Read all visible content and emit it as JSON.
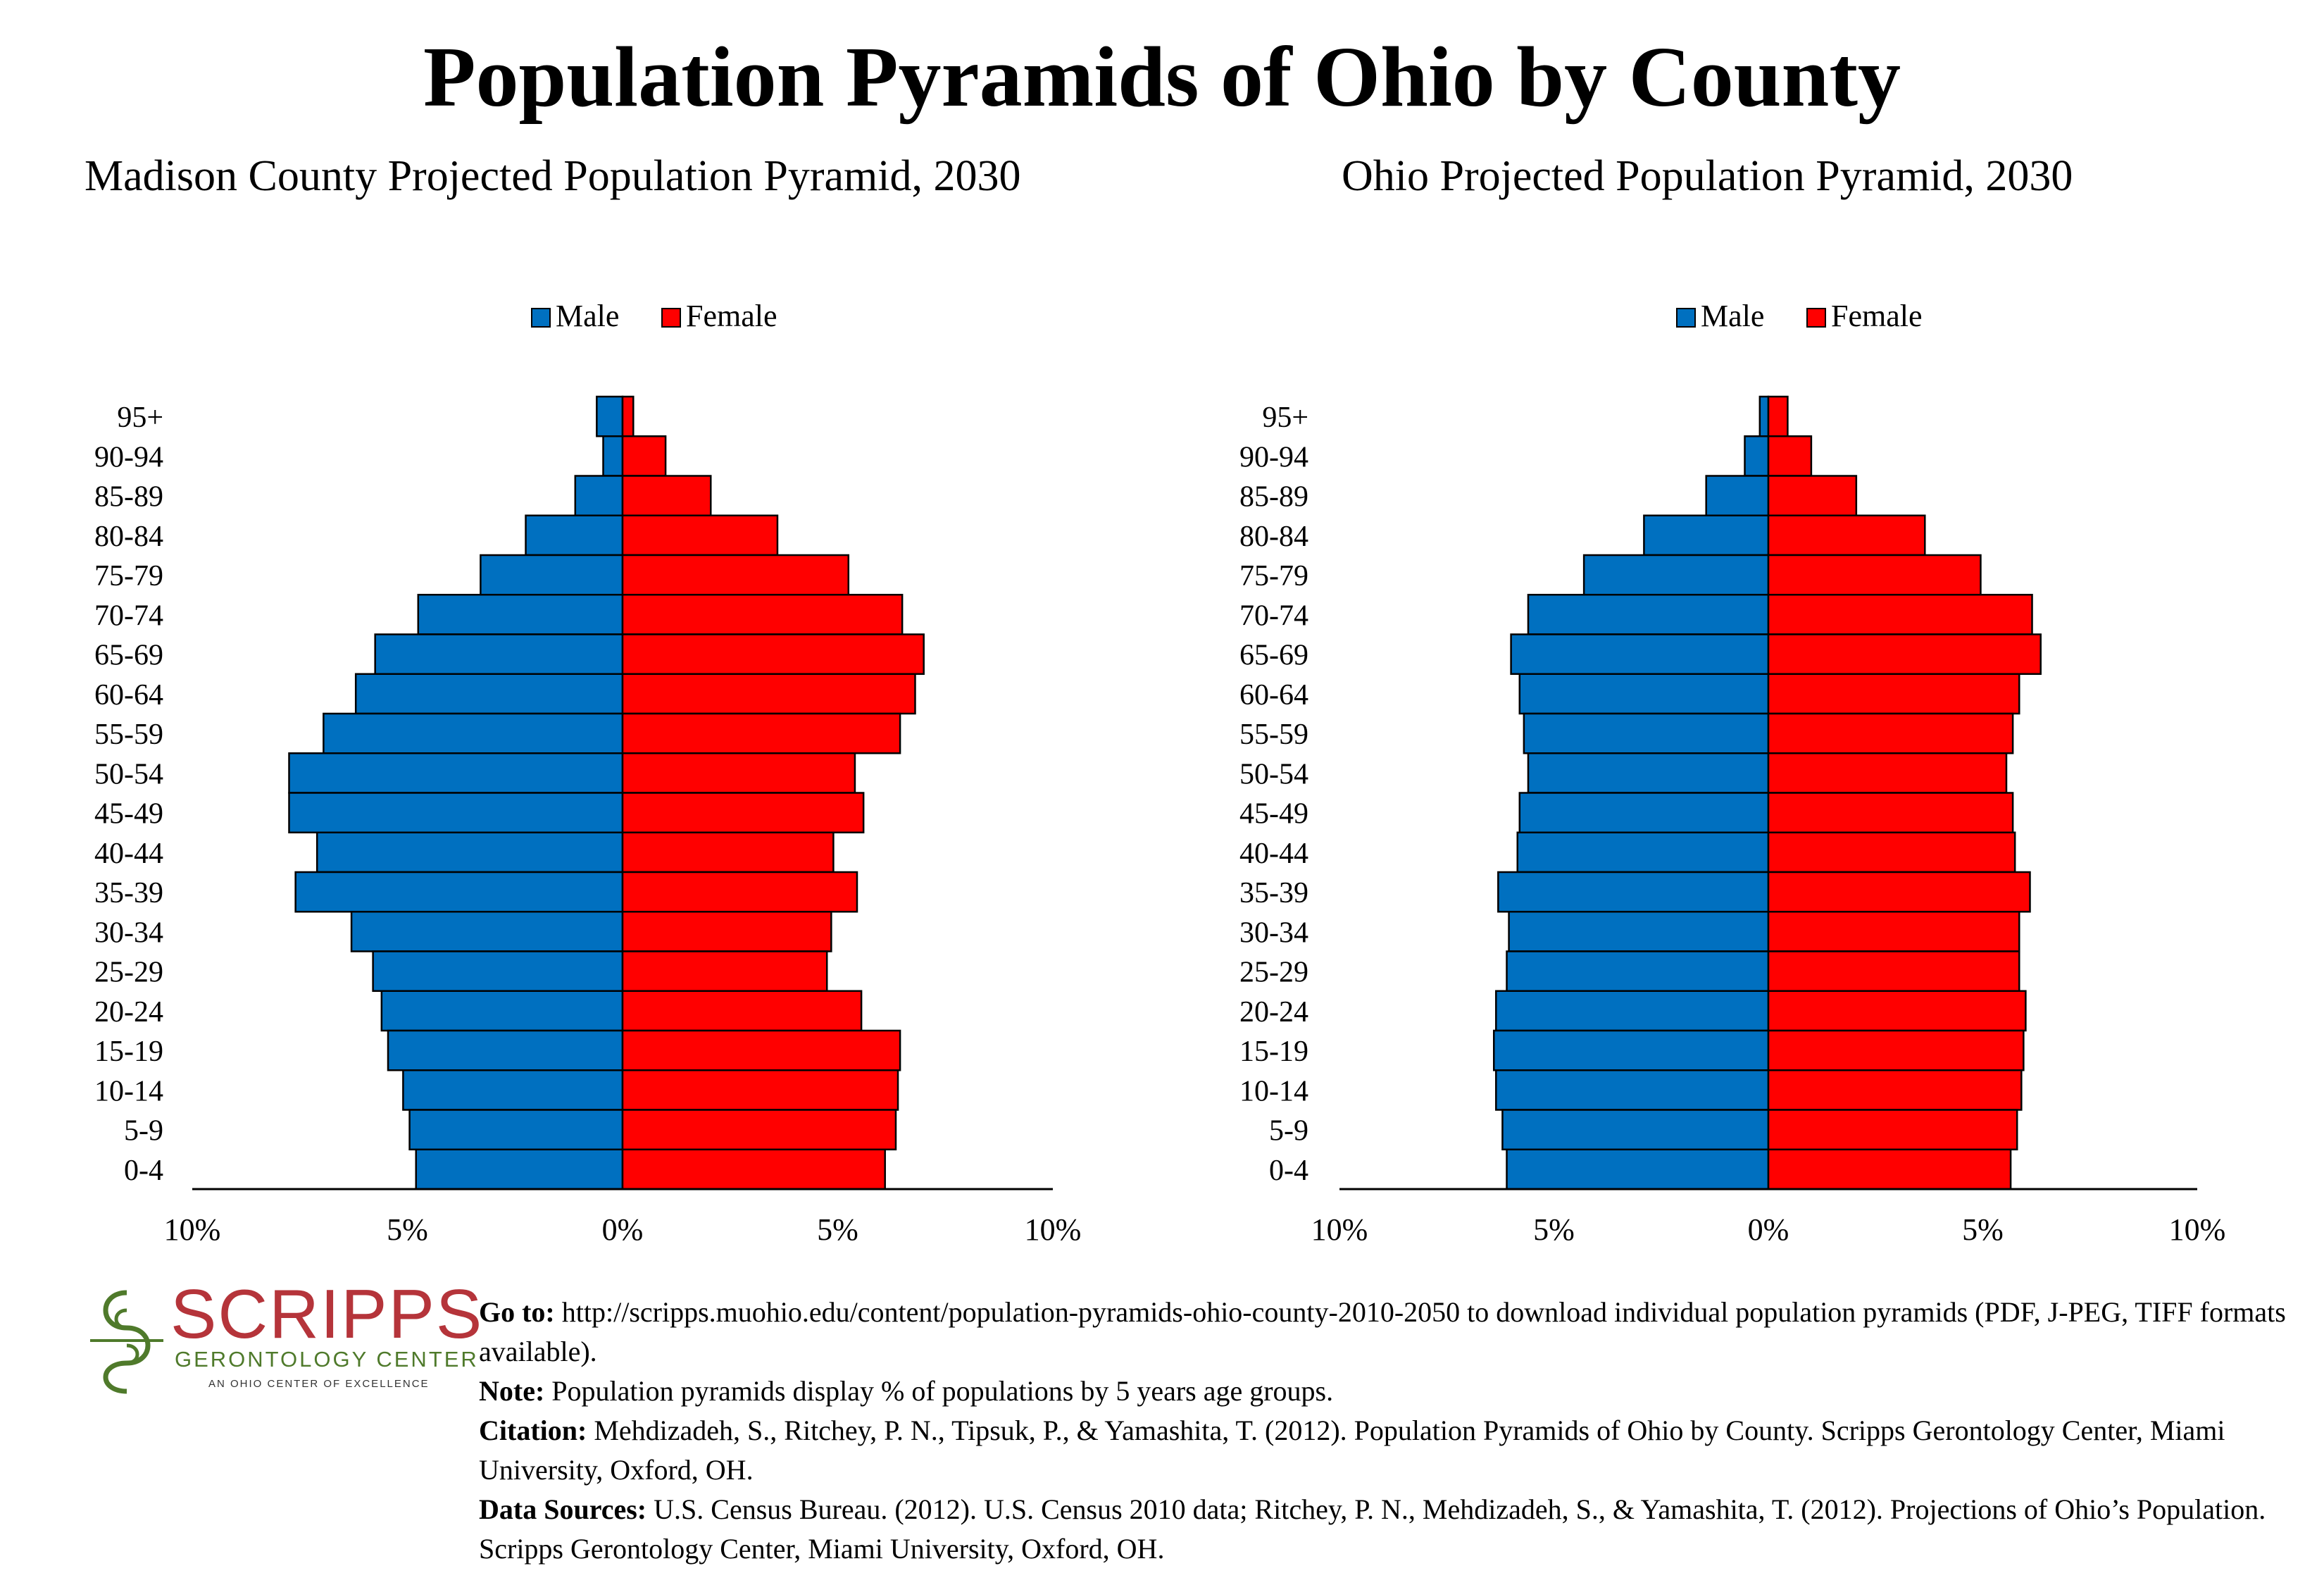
{
  "title": "Population Pyramids of Ohio by County",
  "legend": {
    "male": "Male",
    "female": "Female"
  },
  "colors": {
    "male": "#0070c0",
    "female": "#ff0000"
  },
  "chart_data": [
    {
      "type": "bar",
      "orientation": "horizontal-pyramid",
      "title": "Madison County Projected Population Pyramid, 2030",
      "categories": [
        "95+",
        "90-94",
        "85-89",
        "80-84",
        "75-79",
        "70-74",
        "65-69",
        "60-64",
        "55-59",
        "50-54",
        "45-49",
        "40-44",
        "35-39",
        "30-34",
        "25-29",
        "20-24",
        "15-19",
        "10-14",
        "5-9",
        "0-4"
      ],
      "series": [
        {
          "name": "Male",
          "values": [
            0.6,
            0.45,
            1.1,
            2.25,
            3.3,
            4.75,
            5.75,
            6.2,
            6.95,
            7.75,
            7.75,
            7.1,
            7.6,
            6.3,
            5.8,
            5.6,
            5.45,
            5.1,
            4.95,
            4.8
          ]
        },
        {
          "name": "Female",
          "values": [
            0.25,
            1.0,
            2.05,
            3.6,
            5.25,
            6.5,
            7.0,
            6.8,
            6.45,
            5.4,
            5.6,
            4.9,
            5.45,
            4.85,
            4.75,
            5.55,
            6.45,
            6.4,
            6.35,
            6.1
          ]
        }
      ],
      "xlim": [
        -10,
        10
      ],
      "tick_labels": [
        "10%",
        "5%",
        "0%",
        "5%",
        "10%"
      ],
      "legend_position": "top-center"
    },
    {
      "type": "bar",
      "orientation": "horizontal-pyramid",
      "title": "Ohio Projected Population Pyramid, 2030",
      "categories": [
        "95+",
        "90-94",
        "85-89",
        "80-84",
        "75-79",
        "70-74",
        "65-69",
        "60-64",
        "55-59",
        "50-54",
        "45-49",
        "40-44",
        "35-39",
        "30-34",
        "25-29",
        "20-24",
        "15-19",
        "10-14",
        "5-9",
        "0-4"
      ],
      "series": [
        {
          "name": "Male",
          "values": [
            0.2,
            0.55,
            1.45,
            2.9,
            4.3,
            5.6,
            6.0,
            5.8,
            5.7,
            5.6,
            5.8,
            5.85,
            6.3,
            6.05,
            6.1,
            6.35,
            6.4,
            6.35,
            6.2,
            6.1
          ]
        },
        {
          "name": "Female",
          "values": [
            0.45,
            1.0,
            2.05,
            3.65,
            4.95,
            6.15,
            6.35,
            5.85,
            5.7,
            5.55,
            5.7,
            5.75,
            6.1,
            5.85,
            5.85,
            6.0,
            5.95,
            5.9,
            5.8,
            5.65
          ]
        }
      ],
      "xlim": [
        -10,
        10
      ],
      "tick_labels": [
        "10%",
        "5%",
        "0%",
        "5%",
        "10%"
      ],
      "legend_position": "top-center"
    }
  ],
  "footer": {
    "goto_label": "Go to:",
    "goto_text": "http://scripps.muohio.edu/content/population-pyramids-ohio-county-2010-2050 to download individual population pyramids (PDF, J-PEG, TIFF formats available).",
    "note_label": "Note:",
    "note_text": "Population pyramids display % of populations by 5 years age groups.",
    "citation_label": "Citation:",
    "citation_text": "Mehdizadeh, S., Ritchey, P. N., Tipsuk, P., & Yamashita, T. (2012). Population Pyramids of Ohio by County. Scripps Gerontology Center, Miami University, Oxford, OH.",
    "sources_label": "Data Sources:",
    "sources_text": "U.S. Census Bureau. (2012). U.S. Census 2010 data; Ritchey, P. N., Mehdizadeh, S., & Yamashita, T. (2012). Projections of Ohio’s Population. Scripps Gerontology Center, Miami University, Oxford, OH."
  },
  "logo": {
    "name": "SCRIPPS",
    "subtitle": "GERONTOLOGY CENTER",
    "tagline": "AN OHIO CENTER OF EXCELLENCE",
    "icon": "scripps-swirl-logo-icon"
  }
}
